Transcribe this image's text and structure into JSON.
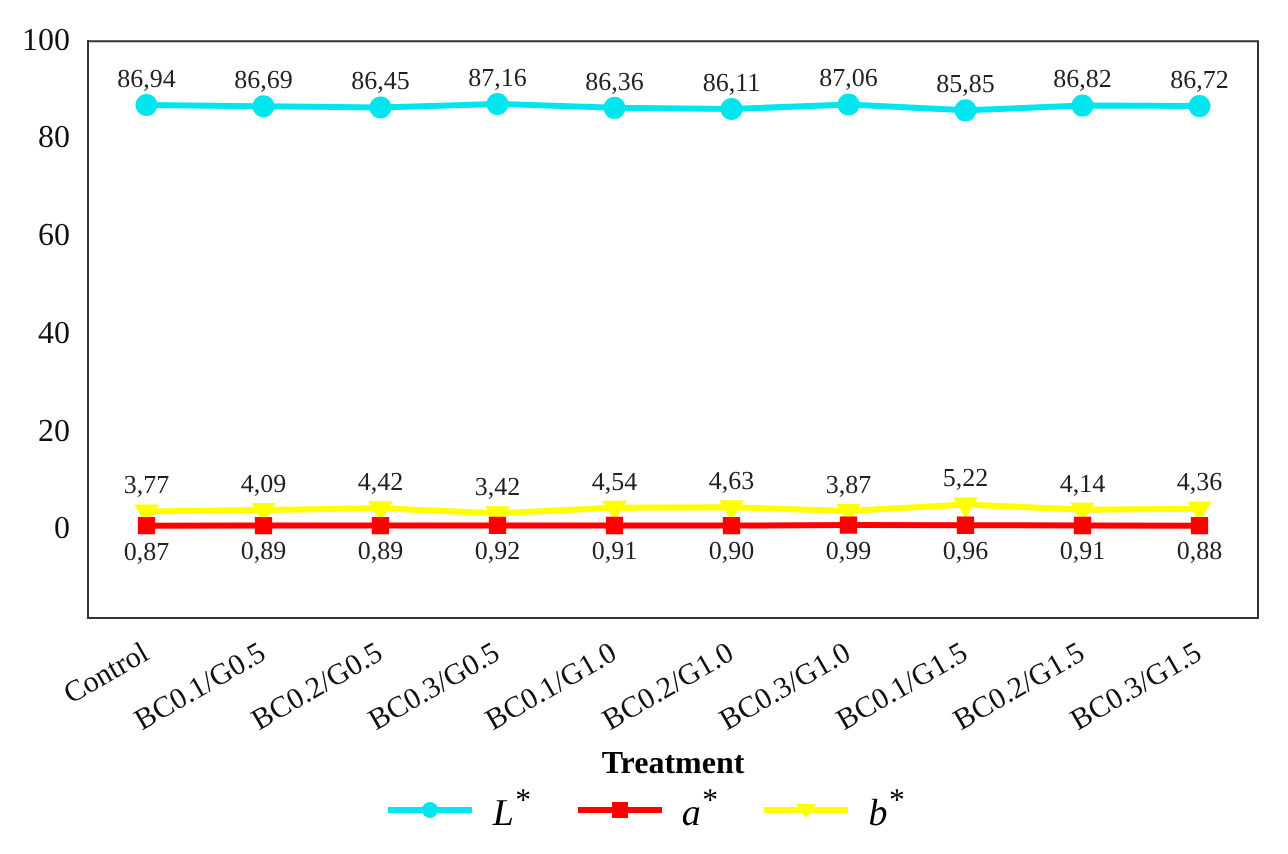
{
  "chart_data": {
    "type": "line",
    "xlabel": "Treatment",
    "categories": [
      "Control",
      "BC0.1/G0.5",
      "BC0.2/G0.5",
      "BC0.3/G0.5",
      "BC0.1/G1.0",
      "BC0.2/G1.0",
      "BC0.3/G1.0",
      "BC0.1/G1.5",
      "BC0.2/G1.5",
      "BC0.3/G1.5"
    ],
    "series": [
      {
        "name": "L$^{*}$",
        "color": "#00e5ee",
        "marker": "circle",
        "values": [
          86.94,
          86.69,
          86.45,
          87.16,
          86.36,
          86.11,
          87.06,
          85.85,
          86.82,
          86.72
        ],
        "value_labels": [
          "86,94",
          "86,69",
          "86,45",
          "87,16",
          "86,36",
          "86,11",
          "87,06",
          "85,85",
          "86,82",
          "86,72"
        ]
      },
      {
        "name": "a$^{*}$",
        "color": "#ff0000",
        "marker": "square",
        "values": [
          0.87,
          0.89,
          0.89,
          0.92,
          0.91,
          0.9,
          0.99,
          0.96,
          0.91,
          0.88
        ],
        "value_labels": [
          "0,87",
          "0,89",
          "0,89",
          "0,92",
          "0,91",
          "0,90",
          "0,99",
          "0,96",
          "0,91",
          "0,88"
        ]
      },
      {
        "name": "b$^{*}$",
        "color": "#ffff00",
        "marker": "triangle",
        "values": [
          3.77,
          4.09,
          4.42,
          3.42,
          4.54,
          4.63,
          3.87,
          5.22,
          4.14,
          4.36
        ],
        "value_labels": [
          "3,77",
          "4,09",
          "4,42",
          "3,42",
          "4,54",
          "4,63",
          "3,87",
          "5,22",
          "4,14",
          "4,36"
        ]
      }
    ],
    "ylim": [
      -18,
      100
    ],
    "yticks": [
      0,
      20,
      40,
      60,
      80,
      100
    ],
    "grid": false,
    "legend": "bottom",
    "line_style": "solid"
  }
}
